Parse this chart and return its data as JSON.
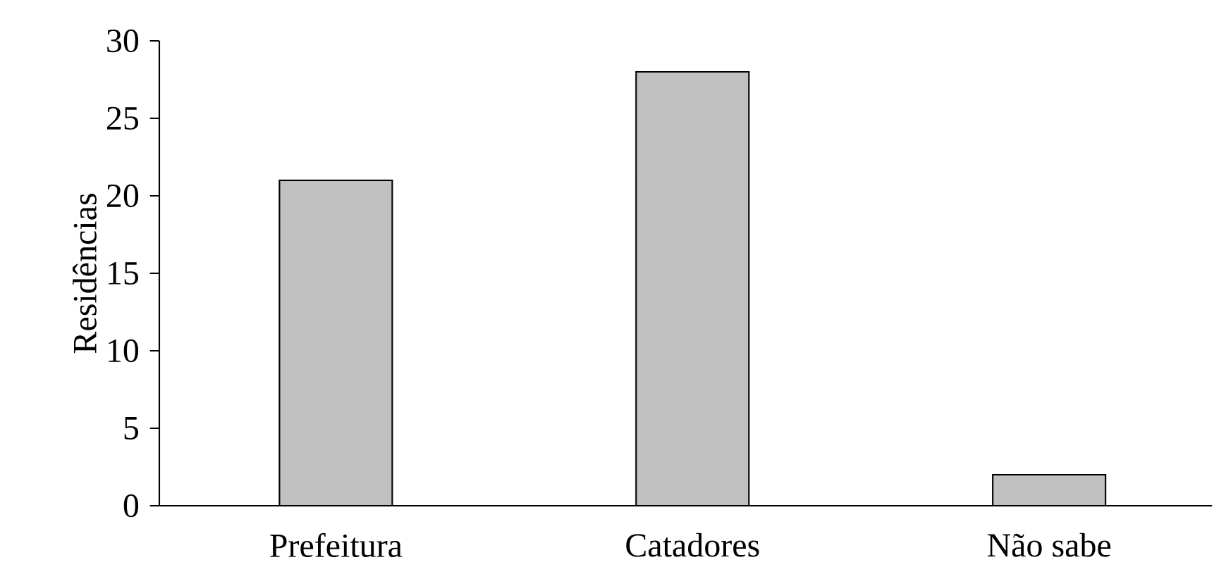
{
  "chart_data": {
    "type": "bar",
    "ylabel": "Residências",
    "categories": [
      "Prefeitura",
      "Catadores",
      "Não sabe"
    ],
    "values": [
      21,
      28,
      2
    ],
    "color": "#c0c0c0",
    "ylim": [
      0,
      30
    ],
    "yticks": [
      0,
      5,
      10,
      15,
      20,
      25,
      30
    ],
    "grid": false
  }
}
